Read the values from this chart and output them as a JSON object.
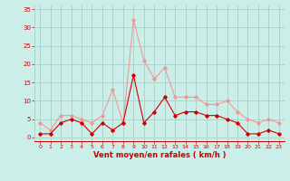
{
  "x": [
    0,
    1,
    2,
    3,
    4,
    5,
    6,
    7,
    8,
    9,
    10,
    11,
    12,
    13,
    14,
    15,
    16,
    17,
    18,
    19,
    20,
    21,
    22,
    23
  ],
  "wind_avg": [
    1,
    1,
    4,
    5,
    4,
    1,
    4,
    2,
    4,
    17,
    4,
    7,
    11,
    6,
    7,
    7,
    6,
    6,
    5,
    4,
    1,
    1,
    2,
    1
  ],
  "wind_gust": [
    4,
    2,
    6,
    6,
    5,
    4,
    6,
    13,
    4,
    32,
    21,
    16,
    19,
    11,
    11,
    11,
    9,
    9,
    10,
    7,
    5,
    4,
    5,
    4
  ],
  "bg_color": "#cceee8",
  "grid_color": "#aad4cc",
  "line_avg_color": "#cc0000",
  "line_gust_color": "#ee9999",
  "xlabel": "Vent moyen/en rafales ( km/h )",
  "ylabel_ticks": [
    0,
    5,
    10,
    15,
    20,
    25,
    30,
    35
  ],
  "ylim": [
    -1,
    36
  ],
  "xlim": [
    -0.5,
    23.5
  ],
  "tick_color": "#cc0000",
  "label_color": "#cc0000"
}
